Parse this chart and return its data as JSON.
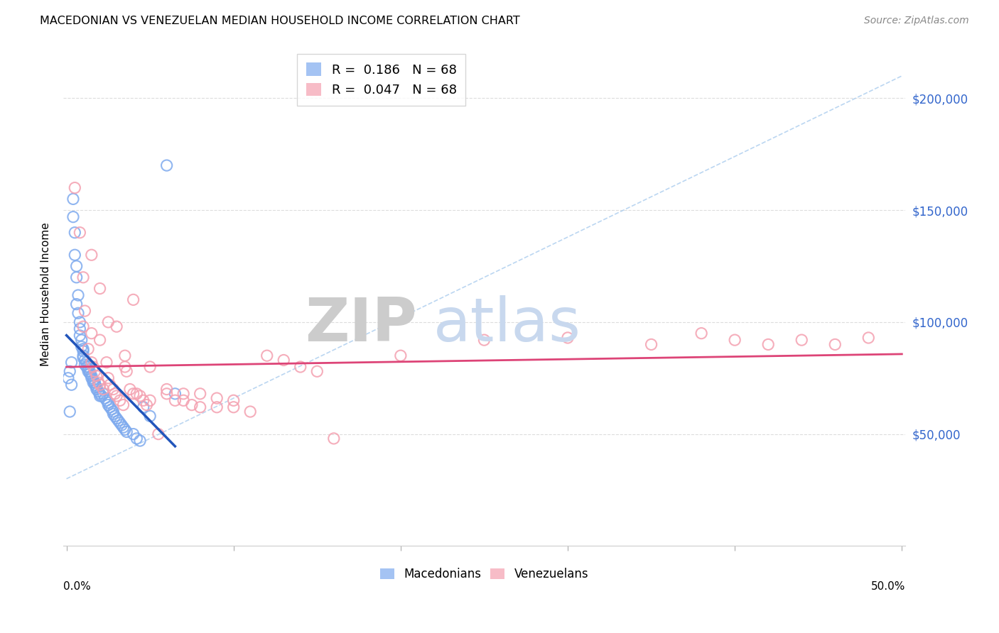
{
  "title": "MACEDONIAN VS VENEZUELAN MEDIAN HOUSEHOLD INCOME CORRELATION CHART",
  "source": "Source: ZipAtlas.com",
  "ylabel": "Median Household Income",
  "yticks": [
    50000,
    100000,
    150000,
    200000
  ],
  "ytick_labels": [
    "$50,000",
    "$100,000",
    "$150,000",
    "$200,000"
  ],
  "xlim": [
    -0.002,
    0.502
  ],
  "ylim": [
    0,
    225000
  ],
  "legend_label_mac": "Macedonians",
  "legend_label_ven": "Venezuelans",
  "mac_color": "#7eaaee",
  "ven_color": "#f4a0b0",
  "mac_line_color": "#2255bb",
  "ven_line_color": "#dd4477",
  "diag_line_color": "#aaccee",
  "background_color": "#ffffff",
  "grid_color": "#dddddd",
  "watermark_zip": "ZIP",
  "watermark_atlas": "atlas",
  "mac_x": [
    0.001,
    0.002,
    0.002,
    0.003,
    0.003,
    0.004,
    0.004,
    0.005,
    0.005,
    0.006,
    0.006,
    0.006,
    0.007,
    0.007,
    0.008,
    0.008,
    0.008,
    0.009,
    0.009,
    0.01,
    0.01,
    0.01,
    0.01,
    0.011,
    0.011,
    0.012,
    0.012,
    0.013,
    0.013,
    0.013,
    0.014,
    0.014,
    0.015,
    0.015,
    0.016,
    0.016,
    0.017,
    0.017,
    0.018,
    0.018,
    0.019,
    0.02,
    0.02,
    0.021,
    0.022,
    0.023,
    0.024,
    0.025,
    0.025,
    0.026,
    0.027,
    0.028,
    0.028,
    0.029,
    0.03,
    0.031,
    0.032,
    0.033,
    0.034,
    0.035,
    0.036,
    0.04,
    0.042,
    0.044,
    0.046,
    0.05,
    0.06,
    0.065
  ],
  "mac_y": [
    75000,
    78000,
    60000,
    82000,
    72000,
    155000,
    147000,
    140000,
    130000,
    125000,
    120000,
    108000,
    112000,
    104000,
    100000,
    97000,
    94000,
    92000,
    89000,
    88000,
    87000,
    85000,
    84000,
    83000,
    81000,
    82000,
    80000,
    80000,
    79000,
    78000,
    78000,
    77000,
    76000,
    75000,
    74000,
    73000,
    73000,
    72000,
    71000,
    70000,
    69000,
    68000,
    67000,
    67000,
    68000,
    66000,
    65000,
    64000,
    63000,
    62000,
    61000,
    60000,
    59000,
    58000,
    57000,
    56000,
    55000,
    54000,
    53000,
    52000,
    51000,
    50000,
    48000,
    47000,
    62000,
    58000,
    170000,
    68000
  ],
  "ven_x": [
    0.005,
    0.008,
    0.01,
    0.011,
    0.013,
    0.015,
    0.016,
    0.017,
    0.018,
    0.019,
    0.02,
    0.022,
    0.024,
    0.025,
    0.026,
    0.028,
    0.029,
    0.03,
    0.032,
    0.034,
    0.035,
    0.036,
    0.038,
    0.04,
    0.042,
    0.044,
    0.046,
    0.048,
    0.05,
    0.055,
    0.06,
    0.065,
    0.07,
    0.075,
    0.08,
    0.09,
    0.1,
    0.11,
    0.12,
    0.13,
    0.14,
    0.15,
    0.16,
    0.2,
    0.25,
    0.3,
    0.35,
    0.38,
    0.4,
    0.42,
    0.44,
    0.46,
    0.48,
    0.015,
    0.02,
    0.025,
    0.03,
    0.035,
    0.04,
    0.01,
    0.015,
    0.02,
    0.05,
    0.06,
    0.07,
    0.08,
    0.09,
    0.1
  ],
  "ven_y": [
    160000,
    140000,
    120000,
    105000,
    88000,
    82000,
    80000,
    78000,
    76000,
    73000,
    72000,
    70000,
    82000,
    75000,
    72000,
    70000,
    68000,
    67000,
    65000,
    63000,
    80000,
    78000,
    70000,
    68000,
    68000,
    67000,
    65000,
    63000,
    65000,
    50000,
    68000,
    65000,
    65000,
    63000,
    62000,
    62000,
    62000,
    60000,
    85000,
    83000,
    80000,
    78000,
    48000,
    85000,
    92000,
    93000,
    90000,
    95000,
    92000,
    90000,
    92000,
    90000,
    93000,
    130000,
    115000,
    100000,
    98000,
    85000,
    110000,
    98000,
    95000,
    92000,
    80000,
    70000,
    68000,
    68000,
    66000,
    65000
  ]
}
